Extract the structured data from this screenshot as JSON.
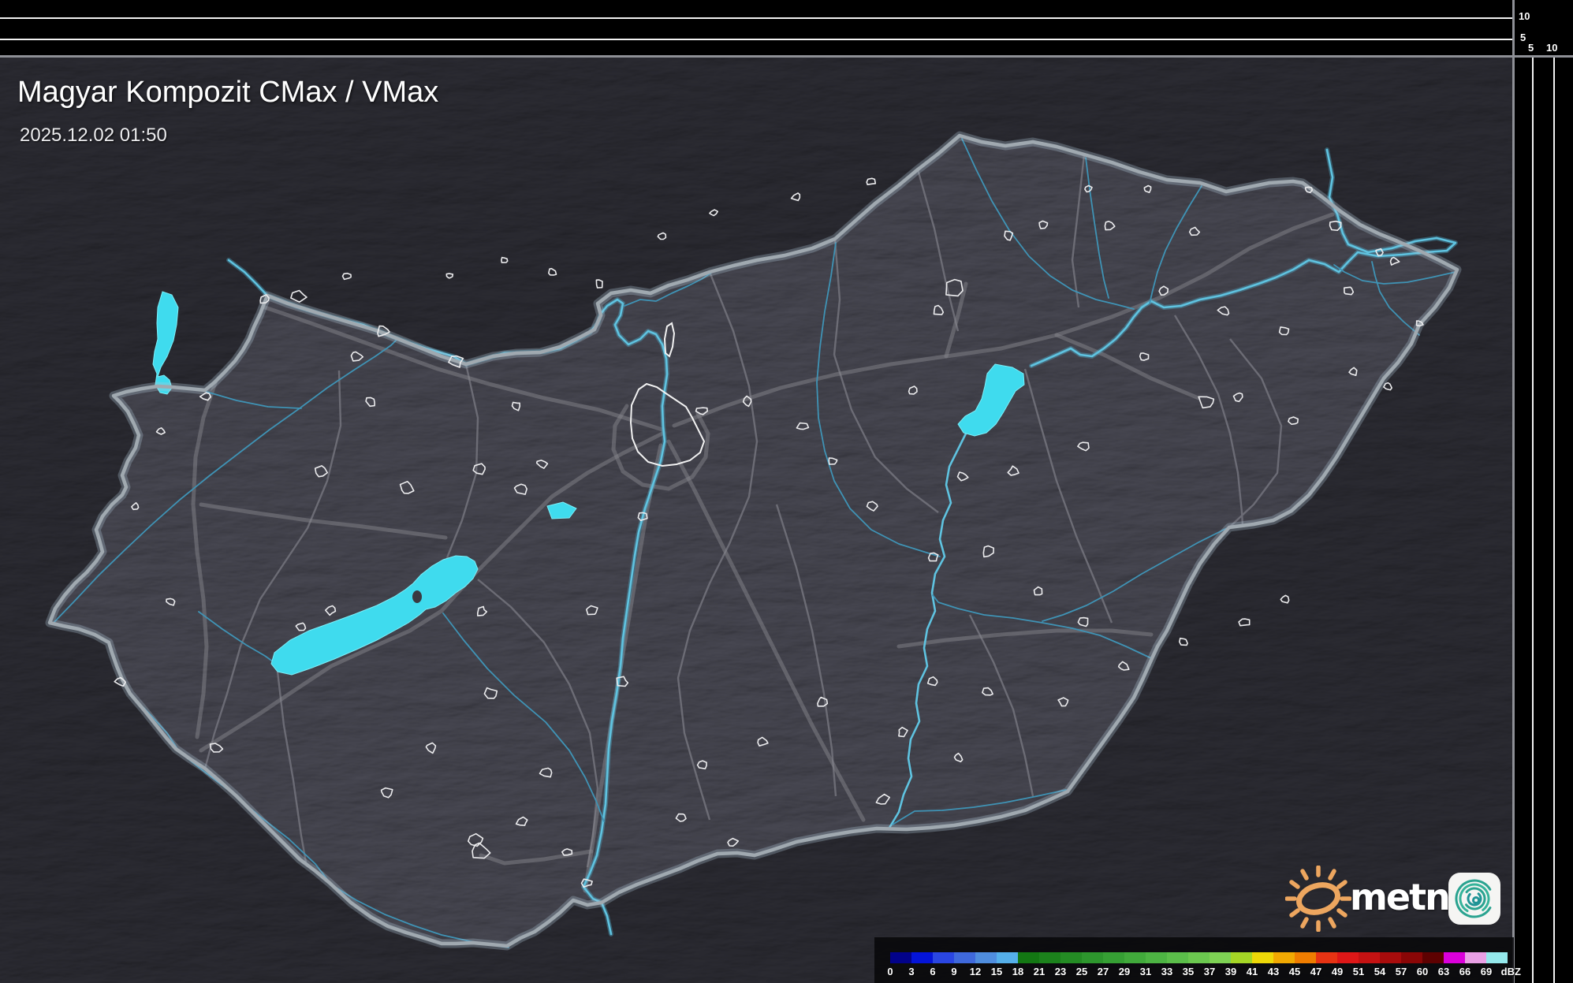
{
  "header": {
    "title": "Magyar Kompozit CMax / VMax",
    "timestamp": "2025.12.02 01:50"
  },
  "profile_axes": {
    "top": {
      "labels": [
        "10",
        "5"
      ]
    },
    "right": {
      "labels": [
        "5",
        "10"
      ]
    }
  },
  "legend": {
    "unit": "dBZ",
    "ticks": [
      "0",
      "3",
      "6",
      "9",
      "12",
      "15",
      "18",
      "21",
      "23",
      "25",
      "27",
      "29",
      "31",
      "33",
      "35",
      "37",
      "39",
      "41",
      "43",
      "45",
      "47",
      "49",
      "51",
      "54",
      "57",
      "60",
      "63",
      "66",
      "69"
    ],
    "colors": [
      "#02028a",
      "#0414d8",
      "#2a46e2",
      "#3f69dc",
      "#4f8dde",
      "#55afe9",
      "#137713",
      "#1c821c",
      "#248c24",
      "#2d962d",
      "#36a034",
      "#41aa3b",
      "#4db443",
      "#5bbe4a",
      "#6bc84f",
      "#7ed254",
      "#a5d626",
      "#eed808",
      "#f1a902",
      "#ef7d00",
      "#e73313",
      "#de1717",
      "#c51212",
      "#a80c0c",
      "#8a0606",
      "#5e0101",
      "#db00db",
      "#e9a0e5",
      "#95e9ec"
    ]
  },
  "branding": {
    "logo_text": "metnet"
  },
  "colors": {
    "lake": "#3fdbee",
    "river_major": "#5fc3e0",
    "river_minor": "#3f93b5",
    "country_border": "#a0a9b0",
    "county_border": "#71717a",
    "road": "#87878f",
    "terrain_inside": "#3a3a41",
    "terrain_outside": "#232328",
    "settlement_outline": "#ececee",
    "legend_panel": "#09090b",
    "sun_orange": "#eda65f",
    "spiral_teal": "#2aa390"
  }
}
